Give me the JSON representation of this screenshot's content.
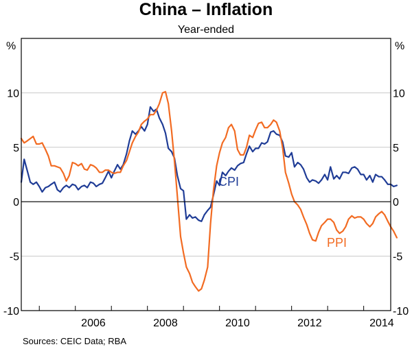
{
  "chart_data": {
    "type": "line",
    "title": "China – Inflation",
    "subtitle": "Year-ended",
    "left_unit": "%",
    "right_unit": "%",
    "ylim": [
      -10,
      15
    ],
    "yticks": [
      {
        "value": 10,
        "label": "10"
      },
      {
        "value": 5,
        "label": "5"
      },
      {
        "value": 0,
        "label": "0"
      },
      {
        "value": -5,
        "label": "-5"
      },
      {
        "value": -10,
        "label": "-10"
      }
    ],
    "xlim": [
      2004.5,
      2014.75
    ],
    "xticks": [
      {
        "value": 2006,
        "label": "2006"
      },
      {
        "value": 2008,
        "label": "2008"
      },
      {
        "value": 2010,
        "label": "2010"
      },
      {
        "value": 2012,
        "label": "2012"
      },
      {
        "value": 2014,
        "label": "2014"
      }
    ],
    "source": "Sources:   CEIC Data; RBA",
    "series": [
      {
        "name": "CPI",
        "label": "CPI",
        "color": "#1f3c96",
        "points": [
          [
            2004.5,
            1.8
          ],
          [
            2004.58,
            3.9
          ],
          [
            2004.67,
            2.8
          ],
          [
            2004.75,
            1.8
          ],
          [
            2004.83,
            1.6
          ],
          [
            2004.92,
            1.8
          ],
          [
            2005.0,
            1.4
          ],
          [
            2005.08,
            0.9
          ],
          [
            2005.17,
            1.3
          ],
          [
            2005.25,
            1.4
          ],
          [
            2005.33,
            1.6
          ],
          [
            2005.42,
            1.8
          ],
          [
            2005.5,
            1.1
          ],
          [
            2005.58,
            0.9
          ],
          [
            2005.67,
            1.3
          ],
          [
            2005.75,
            1.5
          ],
          [
            2005.83,
            1.3
          ],
          [
            2005.92,
            1.6
          ],
          [
            2006.0,
            1.5
          ],
          [
            2006.08,
            1.1
          ],
          [
            2006.17,
            1.4
          ],
          [
            2006.25,
            1.5
          ],
          [
            2006.33,
            1.3
          ],
          [
            2006.42,
            1.8
          ],
          [
            2006.5,
            1.7
          ],
          [
            2006.58,
            1.4
          ],
          [
            2006.67,
            1.6
          ],
          [
            2006.75,
            1.7
          ],
          [
            2006.83,
            2.2
          ],
          [
            2006.92,
            2.8
          ],
          [
            2007.0,
            2.2
          ],
          [
            2007.08,
            2.8
          ],
          [
            2007.17,
            3.4
          ],
          [
            2007.25,
            3.0
          ],
          [
            2007.33,
            3.4
          ],
          [
            2007.42,
            4.4
          ],
          [
            2007.5,
            5.6
          ],
          [
            2007.58,
            6.5
          ],
          [
            2007.67,
            6.2
          ],
          [
            2007.75,
            6.5
          ],
          [
            2007.83,
            6.9
          ],
          [
            2007.92,
            6.5
          ],
          [
            2008.0,
            7.1
          ],
          [
            2008.08,
            8.7
          ],
          [
            2008.17,
            8.3
          ],
          [
            2008.25,
            8.5
          ],
          [
            2008.33,
            7.7
          ],
          [
            2008.42,
            7.1
          ],
          [
            2008.5,
            6.3
          ],
          [
            2008.58,
            4.9
          ],
          [
            2008.67,
            4.6
          ],
          [
            2008.75,
            4.0
          ],
          [
            2008.83,
            2.4
          ],
          [
            2008.92,
            1.2
          ],
          [
            2009.0,
            1.0
          ],
          [
            2009.08,
            -1.6
          ],
          [
            2009.17,
            -1.2
          ],
          [
            2009.25,
            -1.5
          ],
          [
            2009.33,
            -1.4
          ],
          [
            2009.42,
            -1.7
          ],
          [
            2009.5,
            -1.8
          ],
          [
            2009.58,
            -1.2
          ],
          [
            2009.67,
            -0.8
          ],
          [
            2009.75,
            -0.5
          ],
          [
            2009.83,
            0.6
          ],
          [
            2009.92,
            1.9
          ],
          [
            2010.0,
            1.5
          ],
          [
            2010.08,
            2.7
          ],
          [
            2010.17,
            2.4
          ],
          [
            2010.25,
            2.8
          ],
          [
            2010.33,
            3.1
          ],
          [
            2010.42,
            2.9
          ],
          [
            2010.5,
            3.3
          ],
          [
            2010.58,
            3.5
          ],
          [
            2010.67,
            3.6
          ],
          [
            2010.75,
            4.4
          ],
          [
            2010.83,
            5.1
          ],
          [
            2010.92,
            4.6
          ],
          [
            2011.0,
            4.9
          ],
          [
            2011.08,
            4.9
          ],
          [
            2011.17,
            5.4
          ],
          [
            2011.25,
            5.3
          ],
          [
            2011.33,
            5.5
          ],
          [
            2011.42,
            6.4
          ],
          [
            2011.5,
            6.5
          ],
          [
            2011.58,
            6.2
          ],
          [
            2011.67,
            6.1
          ],
          [
            2011.75,
            5.5
          ],
          [
            2011.83,
            4.2
          ],
          [
            2011.92,
            4.1
          ],
          [
            2012.0,
            4.5
          ],
          [
            2012.08,
            3.2
          ],
          [
            2012.17,
            3.6
          ],
          [
            2012.25,
            3.4
          ],
          [
            2012.33,
            3.0
          ],
          [
            2012.42,
            2.2
          ],
          [
            2012.5,
            1.8
          ],
          [
            2012.58,
            2.0
          ],
          [
            2012.67,
            1.9
          ],
          [
            2012.75,
            1.7
          ],
          [
            2012.83,
            2.0
          ],
          [
            2012.92,
            2.5
          ],
          [
            2013.0,
            2.0
          ],
          [
            2013.08,
            3.2
          ],
          [
            2013.17,
            2.1
          ],
          [
            2013.25,
            2.4
          ],
          [
            2013.33,
            2.1
          ],
          [
            2013.42,
            2.7
          ],
          [
            2013.5,
            2.7
          ],
          [
            2013.58,
            2.6
          ],
          [
            2013.67,
            3.1
          ],
          [
            2013.75,
            3.2
          ],
          [
            2013.83,
            3.0
          ],
          [
            2013.92,
            2.5
          ],
          [
            2014.0,
            2.5
          ],
          [
            2014.08,
            2.0
          ],
          [
            2014.17,
            2.4
          ],
          [
            2014.25,
            1.8
          ],
          [
            2014.33,
            2.5
          ],
          [
            2014.42,
            2.3
          ],
          [
            2014.5,
            2.3
          ],
          [
            2014.58,
            2.0
          ],
          [
            2014.67,
            1.6
          ],
          [
            2014.75,
            1.6
          ],
          [
            2014.83,
            1.4
          ],
          [
            2014.92,
            1.5
          ]
        ]
      },
      {
        "name": "PPI",
        "label": "PPI",
        "color": "#f26b22",
        "points": [
          [
            2004.5,
            5.8
          ],
          [
            2004.58,
            5.4
          ],
          [
            2004.67,
            5.6
          ],
          [
            2004.75,
            5.8
          ],
          [
            2004.83,
            6.0
          ],
          [
            2004.92,
            5.3
          ],
          [
            2005.0,
            5.3
          ],
          [
            2005.08,
            5.4
          ],
          [
            2005.17,
            4.8
          ],
          [
            2005.25,
            4.2
          ],
          [
            2005.33,
            3.3
          ],
          [
            2005.42,
            3.3
          ],
          [
            2005.5,
            3.2
          ],
          [
            2005.58,
            3.1
          ],
          [
            2005.67,
            2.6
          ],
          [
            2005.75,
            1.9
          ],
          [
            2005.83,
            2.4
          ],
          [
            2005.92,
            3.6
          ],
          [
            2006.0,
            3.5
          ],
          [
            2006.08,
            3.3
          ],
          [
            2006.17,
            3.5
          ],
          [
            2006.25,
            3.0
          ],
          [
            2006.33,
            2.9
          ],
          [
            2006.42,
            3.4
          ],
          [
            2006.5,
            3.3
          ],
          [
            2006.58,
            3.1
          ],
          [
            2006.67,
            2.7
          ],
          [
            2006.75,
            2.7
          ],
          [
            2006.83,
            2.9
          ],
          [
            2006.92,
            2.9
          ],
          [
            2007.0,
            2.7
          ],
          [
            2007.08,
            2.6
          ],
          [
            2007.17,
            2.7
          ],
          [
            2007.25,
            2.7
          ],
          [
            2007.33,
            3.3
          ],
          [
            2007.42,
            3.8
          ],
          [
            2007.5,
            4.6
          ],
          [
            2007.58,
            5.4
          ],
          [
            2007.67,
            6.0
          ],
          [
            2007.75,
            6.4
          ],
          [
            2007.83,
            7.1
          ],
          [
            2007.92,
            7.4
          ],
          [
            2008.0,
            7.6
          ],
          [
            2008.08,
            8.0
          ],
          [
            2008.17,
            8.0
          ],
          [
            2008.25,
            8.4
          ],
          [
            2008.33,
            9.0
          ],
          [
            2008.42,
            10.0
          ],
          [
            2008.5,
            10.1
          ],
          [
            2008.58,
            9.0
          ],
          [
            2008.67,
            6.5
          ],
          [
            2008.75,
            3.7
          ],
          [
            2008.83,
            0.5
          ],
          [
            2008.92,
            -3.2
          ],
          [
            2009.0,
            -4.7
          ],
          [
            2009.08,
            -6.0
          ],
          [
            2009.17,
            -6.6
          ],
          [
            2009.25,
            -7.4
          ],
          [
            2009.33,
            -7.8
          ],
          [
            2009.42,
            -8.2
          ],
          [
            2009.5,
            -8.0
          ],
          [
            2009.58,
            -7.2
          ],
          [
            2009.67,
            -6.0
          ],
          [
            2009.75,
            -2.0
          ],
          [
            2009.83,
            1.0
          ],
          [
            2009.92,
            3.3
          ],
          [
            2010.0,
            4.5
          ],
          [
            2010.08,
            5.4
          ],
          [
            2010.17,
            5.9
          ],
          [
            2010.25,
            6.8
          ],
          [
            2010.33,
            7.1
          ],
          [
            2010.42,
            6.5
          ],
          [
            2010.5,
            4.8
          ],
          [
            2010.58,
            4.3
          ],
          [
            2010.67,
            4.3
          ],
          [
            2010.75,
            5.0
          ],
          [
            2010.83,
            6.1
          ],
          [
            2010.92,
            5.9
          ],
          [
            2011.0,
            6.6
          ],
          [
            2011.08,
            7.2
          ],
          [
            2011.17,
            7.3
          ],
          [
            2011.25,
            6.8
          ],
          [
            2011.33,
            6.8
          ],
          [
            2011.42,
            7.1
          ],
          [
            2011.5,
            7.5
          ],
          [
            2011.58,
            7.3
          ],
          [
            2011.67,
            6.5
          ],
          [
            2011.75,
            5.0
          ],
          [
            2011.83,
            2.7
          ],
          [
            2011.92,
            1.7
          ],
          [
            2012.0,
            0.7
          ],
          [
            2012.08,
            0.0
          ],
          [
            2012.17,
            -0.3
          ],
          [
            2012.25,
            -0.7
          ],
          [
            2012.33,
            -1.4
          ],
          [
            2012.42,
            -2.1
          ],
          [
            2012.5,
            -2.9
          ],
          [
            2012.58,
            -3.5
          ],
          [
            2012.67,
            -3.6
          ],
          [
            2012.75,
            -2.8
          ],
          [
            2012.83,
            -2.2
          ],
          [
            2012.92,
            -1.9
          ],
          [
            2013.0,
            -1.6
          ],
          [
            2013.08,
            -1.6
          ],
          [
            2013.17,
            -1.9
          ],
          [
            2013.25,
            -2.6
          ],
          [
            2013.33,
            -2.9
          ],
          [
            2013.42,
            -2.7
          ],
          [
            2013.5,
            -2.3
          ],
          [
            2013.58,
            -1.6
          ],
          [
            2013.67,
            -1.3
          ],
          [
            2013.75,
            -1.5
          ],
          [
            2013.83,
            -1.4
          ],
          [
            2013.92,
            -1.4
          ],
          [
            2014.0,
            -1.6
          ],
          [
            2014.08,
            -2.0
          ],
          [
            2014.17,
            -2.3
          ],
          [
            2014.25,
            -2.0
          ],
          [
            2014.33,
            -1.4
          ],
          [
            2014.42,
            -1.1
          ],
          [
            2014.5,
            -0.9
          ],
          [
            2014.58,
            -1.2
          ],
          [
            2014.67,
            -1.8
          ],
          [
            2014.75,
            -2.3
          ],
          [
            2014.83,
            -2.7
          ],
          [
            2014.92,
            -3.3
          ]
        ]
      }
    ]
  }
}
